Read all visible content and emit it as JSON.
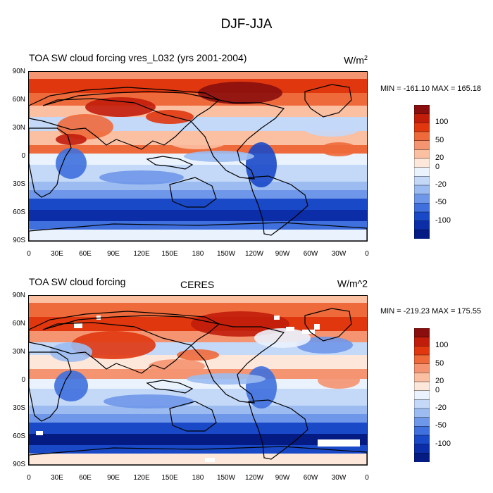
{
  "figure": {
    "title": "DJF-JJA"
  },
  "axes": {
    "lat_labels": [
      "90N",
      "60N",
      "30N",
      "0",
      "30S",
      "60S",
      "90S"
    ],
    "lon_labels": [
      "0",
      "30E",
      "60E",
      "90E",
      "120E",
      "150E",
      "180",
      "150W",
      "120W",
      "90W",
      "60W",
      "30W",
      "0"
    ]
  },
  "colorbar": {
    "labels": [
      "100",
      "50",
      "20",
      "0",
      "-20",
      "-50",
      "-100"
    ],
    "colors": [
      "#8a0e0e",
      "#c11d0b",
      "#e0370f",
      "#ee6a3b",
      "#f59470",
      "#fbbfa2",
      "#fde7da",
      "#eaf2fd",
      "#c4d8f8",
      "#9bbbf1",
      "#6f97e9",
      "#3f70dd",
      "#1a49c8",
      "#0b2ea8",
      "#041b84"
    ]
  },
  "panels": [
    {
      "title_left": "TOA SW cloud forcing vres_L032 (yrs 2001-2004)",
      "title_center": "",
      "units_base": "W/m",
      "units_sup": "2",
      "minmax": "MIN = -161.10 MAX = 165.18"
    },
    {
      "title_left": "TOA SW cloud forcing",
      "title_center": "CERES",
      "units_base": "W/m^2",
      "units_sup": "",
      "minmax": "MIN = -219.23 MAX = 175.55"
    }
  ]
}
